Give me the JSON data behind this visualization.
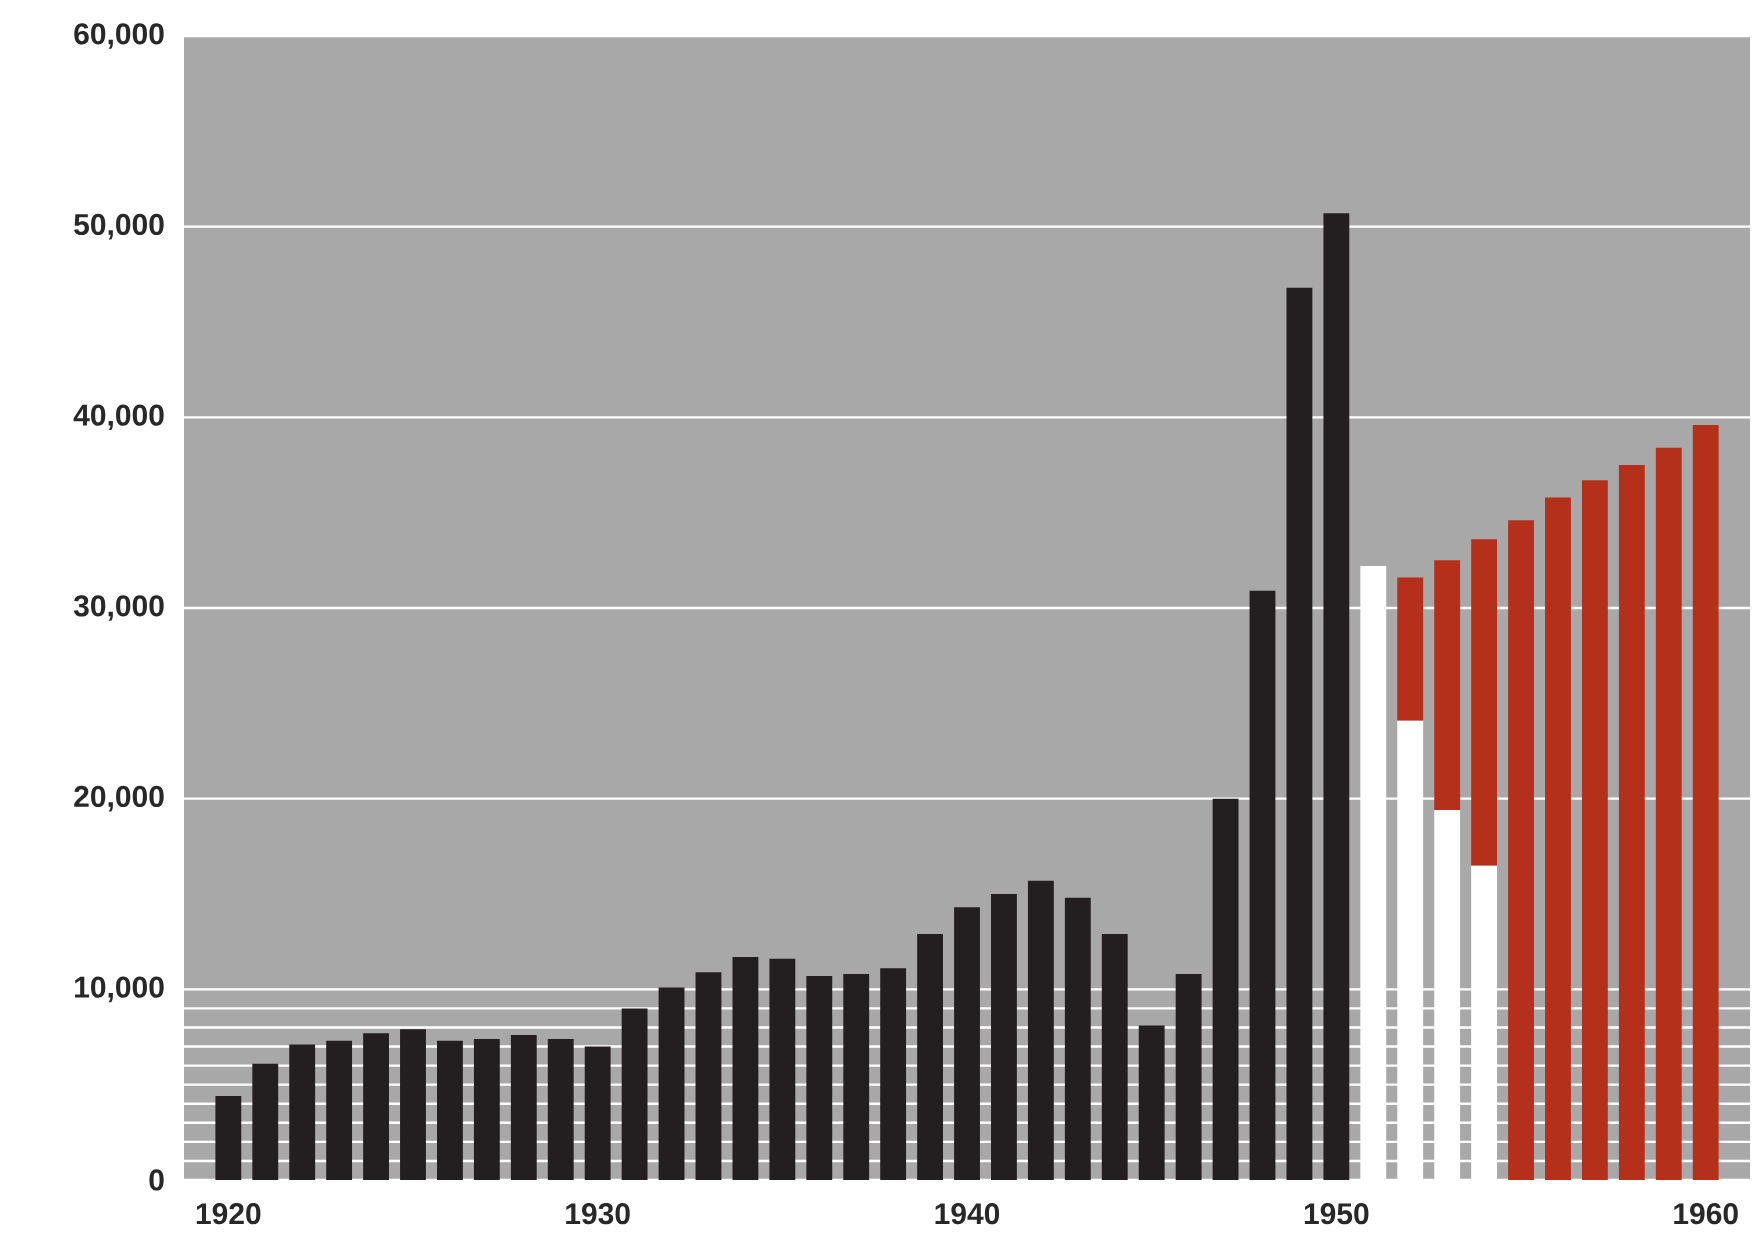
{
  "chart_data": {
    "type": "bar",
    "xlim": [
      1918.8,
      1961.2
    ],
    "xticks": [
      1920,
      1930,
      1940,
      1950,
      1960
    ],
    "ylim": [
      0,
      60000
    ],
    "yticks": [
      0,
      {
        "value": 1000,
        "label": null
      },
      {
        "value": 2000,
        "label": null
      },
      {
        "value": 3000,
        "label": null
      },
      {
        "value": 4000,
        "label": null
      },
      {
        "value": 5000,
        "label": null
      },
      {
        "value": 6000,
        "label": null
      },
      {
        "value": 7000,
        "label": null
      },
      {
        "value": 8000,
        "label": null
      },
      {
        "value": 9000,
        "label": null
      },
      {
        "value": 10000,
        "label": "10,000"
      },
      {
        "value": 20000,
        "label": "20,000"
      },
      {
        "value": 30000,
        "label": "30,000"
      },
      {
        "value": 40000,
        "label": "40,000"
      },
      {
        "value": 50000,
        "label": "50,000"
      },
      {
        "value": 60000,
        "label": "60,000"
      }
    ],
    "grid": "y",
    "series": [
      {
        "color": "#231f20",
        "x": [
          1920,
          1921,
          1922,
          1923,
          1924,
          1925,
          1926,
          1927,
          1928,
          1929,
          1930,
          1931,
          1932,
          1933,
          1934,
          1935,
          1936,
          1937,
          1938,
          1939,
          1940,
          1941,
          1942,
          1943,
          1944,
          1945,
          1946,
          1947,
          1948,
          1949,
          1950
        ],
        "values": [
          4400,
          6100,
          7100,
          7300,
          7700,
          7900,
          7300,
          7400,
          7600,
          7400,
          7000,
          9000,
          10100,
          10900,
          11700,
          11600,
          10700,
          10800,
          11100,
          12900,
          14300,
          15000,
          15700,
          14800,
          12900,
          8100,
          10800,
          20000,
          30900,
          46800,
          50700
        ]
      },
      {
        "color": "#ffffff",
        "x": [
          1951,
          1952,
          1953,
          1954
        ],
        "values": [
          32200,
          24100,
          19400,
          16500
        ]
      },
      {
        "color": "#b5301a",
        "x": [
          1952,
          1953,
          1954,
          1955,
          1956,
          1957,
          1958,
          1959,
          1960
        ],
        "base": [
          24100,
          19400,
          16500,
          0,
          0,
          0,
          0,
          0,
          0
        ],
        "values": [
          7500,
          13100,
          17100,
          34600,
          35800,
          36700,
          37500,
          38400,
          39600
        ]
      }
    ]
  }
}
